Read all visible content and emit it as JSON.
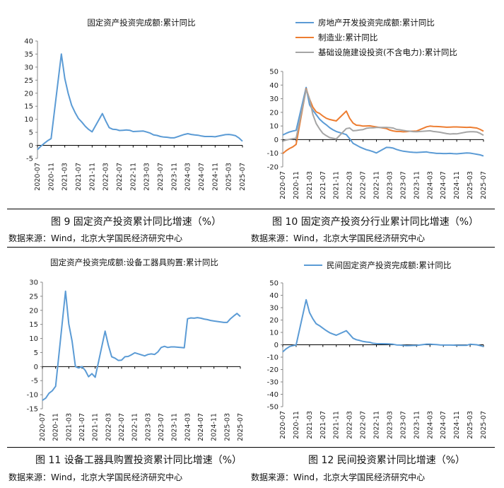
{
  "chart_data": [
    {
      "type": "line",
      "title": "固定资产投资完成额:累计同比",
      "ylim": [
        -5,
        40
      ],
      "yticks": [
        -5,
        0,
        5,
        10,
        15,
        20,
        25,
        30,
        35,
        40
      ],
      "x_tick_labels": [
        "2020-07",
        "2020-11",
        "2021-03",
        "2021-07",
        "2021-11",
        "2022-03",
        "2022-07",
        "2022-11",
        "2023-03",
        "2023-07",
        "2023-11",
        "2024-03",
        "2024-07",
        "2024-11",
        "2025-03",
        "2025-07"
      ],
      "legend": "none",
      "series": [
        {
          "color": "#5b9bd5",
          "x": [
            "2020-07",
            "2020-08",
            "2020-09",
            "2020-10",
            "2020-11",
            "2021-02",
            "2021-03",
            "2021-04",
            "2021-05",
            "2021-06",
            "2021-07",
            "2021-08",
            "2021-09",
            "2021-10",
            "2021-11",
            "2022-02",
            "2022-03",
            "2022-04",
            "2022-05",
            "2022-06",
            "2022-07",
            "2022-08",
            "2022-09",
            "2022-10",
            "2022-11",
            "2023-02",
            "2023-03",
            "2023-04",
            "2023-05",
            "2023-06",
            "2023-07",
            "2023-08",
            "2023-09",
            "2023-10",
            "2023-11",
            "2024-02",
            "2024-03",
            "2024-04",
            "2024-05",
            "2024-06",
            "2024-07",
            "2024-08",
            "2024-09",
            "2024-10",
            "2024-11",
            "2025-02",
            "2025-03",
            "2025-04",
            "2025-05",
            "2025-06",
            "2025-07"
          ],
          "values": [
            -1.6,
            -0.3,
            0.8,
            1.8,
            2.6,
            35.0,
            25.6,
            19.9,
            15.4,
            12.6,
            10.3,
            8.9,
            7.3,
            6.1,
            5.2,
            12.2,
            9.3,
            6.8,
            6.2,
            6.1,
            5.7,
            5.8,
            5.9,
            5.8,
            5.3,
            5.5,
            5.1,
            4.7,
            4.0,
            3.8,
            3.4,
            3.2,
            3.1,
            2.9,
            2.9,
            4.2,
            4.5,
            4.2,
            4.0,
            3.9,
            3.6,
            3.4,
            3.4,
            3.4,
            3.3,
            4.1,
            4.2,
            4.0,
            3.7,
            2.8,
            1.6
          ]
        }
      ]
    },
    {
      "type": "line",
      "ylim": [
        -20,
        50
      ],
      "yticks": [
        -20,
        -10,
        0,
        10,
        20,
        30,
        40,
        50
      ],
      "x_tick_labels": [
        "2020-07",
        "2020-11",
        "2021-03",
        "2021-07",
        "2021-11",
        "2022-03",
        "2022-07",
        "2022-11",
        "2023-03",
        "2023-07",
        "2023-11",
        "2024-03",
        "2024-07",
        "2024-11",
        "2025-03",
        "2025-07"
      ],
      "legend": "top-right",
      "series": [
        {
          "name": "房地产开发投资完成额:累计同比",
          "color": "#5b9bd5",
          "x": [
            "2020-07",
            "2020-08",
            "2020-09",
            "2020-10",
            "2020-11",
            "2021-02",
            "2021-03",
            "2021-04",
            "2021-05",
            "2021-06",
            "2021-07",
            "2021-08",
            "2021-09",
            "2021-10",
            "2021-11",
            "2022-02",
            "2022-03",
            "2022-04",
            "2022-05",
            "2022-06",
            "2022-07",
            "2022-08",
            "2022-09",
            "2022-10",
            "2022-11",
            "2023-02",
            "2023-03",
            "2023-04",
            "2023-05",
            "2023-06",
            "2023-07",
            "2023-08",
            "2023-09",
            "2023-10",
            "2023-11",
            "2024-02",
            "2024-03",
            "2024-04",
            "2024-05",
            "2024-06",
            "2024-07",
            "2024-08",
            "2024-09",
            "2024-10",
            "2024-11",
            "2025-02",
            "2025-03",
            "2025-04",
            "2025-05",
            "2025-06",
            "2025-07"
          ],
          "values": [
            3.4,
            4.6,
            5.6,
            6.3,
            6.8,
            38.3,
            25.6,
            21.6,
            18.3,
            15.0,
            12.7,
            10.9,
            8.8,
            7.2,
            6.0,
            3.7,
            0.7,
            -2.7,
            -4.0,
            -5.4,
            -6.4,
            -7.4,
            -8.0,
            -8.8,
            -9.8,
            -5.7,
            -5.8,
            -6.2,
            -7.2,
            -7.9,
            -8.5,
            -8.8,
            -9.1,
            -9.3,
            -9.4,
            -9.0,
            -9.5,
            -9.8,
            -10.1,
            -10.1,
            -10.2,
            -10.2,
            -10.1,
            -10.3,
            -10.4,
            -9.8,
            -9.9,
            -10.3,
            -10.7,
            -11.2,
            -12.0
          ]
        },
        {
          "name": "制造业:累计同比",
          "color": "#ed7d31",
          "x": [
            "2020-07",
            "2020-08",
            "2020-09",
            "2020-10",
            "2020-11",
            "2021-02",
            "2021-03",
            "2021-04",
            "2021-05",
            "2021-06",
            "2021-07",
            "2021-08",
            "2021-09",
            "2021-10",
            "2021-11",
            "2022-02",
            "2022-03",
            "2022-04",
            "2022-05",
            "2022-06",
            "2022-07",
            "2022-08",
            "2022-09",
            "2022-10",
            "2022-11",
            "2023-02",
            "2023-03",
            "2023-04",
            "2023-05",
            "2023-06",
            "2023-07",
            "2023-08",
            "2023-09",
            "2023-10",
            "2023-11",
            "2024-02",
            "2024-03",
            "2024-04",
            "2024-05",
            "2024-06",
            "2024-07",
            "2024-08",
            "2024-09",
            "2024-10",
            "2024-11",
            "2025-02",
            "2025-03",
            "2025-04",
            "2025-05",
            "2025-06",
            "2025-07"
          ],
          "values": [
            -10.2,
            -8.1,
            -6.5,
            -5.3,
            -3.5,
            37.3,
            29.8,
            23.8,
            20.4,
            19.2,
            17.3,
            15.7,
            14.8,
            14.2,
            13.7,
            20.9,
            15.6,
            12.2,
            10.6,
            10.4,
            9.9,
            10.0,
            10.1,
            9.7,
            9.3,
            8.1,
            7.0,
            6.4,
            6.0,
            6.0,
            5.7,
            5.9,
            6.2,
            6.2,
            6.3,
            9.4,
            9.9,
            9.7,
            9.6,
            9.5,
            9.3,
            9.1,
            9.2,
            9.3,
            9.3,
            9.0,
            9.1,
            8.8,
            8.5,
            7.5,
            6.2
          ]
        },
        {
          "name": "基础设施建设投资(不含电力):累计同比",
          "color": "#a5a5a5",
          "x": [
            "2020-07",
            "2020-08",
            "2020-09",
            "2020-10",
            "2020-11",
            "2021-02",
            "2021-03",
            "2021-04",
            "2021-05",
            "2021-06",
            "2021-07",
            "2021-08",
            "2021-09",
            "2021-10",
            "2021-11",
            "2022-02",
            "2022-03",
            "2022-04",
            "2022-05",
            "2022-06",
            "2022-07",
            "2022-08",
            "2022-09",
            "2022-10",
            "2022-11",
            "2023-02",
            "2023-03",
            "2023-04",
            "2023-05",
            "2023-06",
            "2023-07",
            "2023-08",
            "2023-09",
            "2023-10",
            "2023-11",
            "2024-02",
            "2024-03",
            "2024-04",
            "2024-05",
            "2024-06",
            "2024-07",
            "2024-08",
            "2024-09",
            "2024-10",
            "2024-11",
            "2025-02",
            "2025-03",
            "2025-04",
            "2025-05",
            "2025-06",
            "2025-07"
          ],
          "values": [
            -1.0,
            -0.3,
            0.2,
            0.7,
            1.0,
            36.6,
            29.7,
            18.4,
            11.8,
            7.8,
            4.6,
            2.9,
            1.5,
            1.0,
            0.5,
            8.1,
            8.5,
            6.5,
            6.7,
            7.1,
            7.4,
            8.3,
            8.6,
            8.7,
            8.9,
            9.0,
            8.8,
            8.5,
            7.5,
            7.2,
            6.8,
            6.4,
            6.2,
            5.9,
            5.8,
            6.3,
            6.5,
            6.0,
            5.7,
            5.4,
            4.9,
            4.4,
            4.1,
            4.3,
            4.2,
            5.6,
            5.8,
            5.8,
            5.6,
            4.6,
            3.2
          ]
        }
      ]
    },
    {
      "type": "line",
      "title": "固定资产投资完成额:设备工器具购置:累计同比",
      "ylim": [
        -15,
        30
      ],
      "yticks": [
        -15,
        -10,
        -5,
        0,
        5,
        10,
        15,
        20,
        25,
        30
      ],
      "x_tick_labels": [
        "2020-07",
        "2020-11",
        "2021-03",
        "2021-07",
        "2021-11",
        "2022-03",
        "2022-07",
        "2022-11",
        "2023-03",
        "2023-07",
        "2023-11",
        "2024-03",
        "2024-07",
        "2024-11",
        "2025-03",
        "2025-07"
      ],
      "legend": "none",
      "series": [
        {
          "color": "#5b9bd5",
          "x": [
            "2020-07",
            "2020-08",
            "2020-09",
            "2020-10",
            "2020-11",
            "2021-02",
            "2021-03",
            "2021-04",
            "2021-05",
            "2021-06",
            "2021-07",
            "2021-08",
            "2021-09",
            "2021-10",
            "2021-11",
            "2022-02",
            "2022-03",
            "2022-04",
            "2022-05",
            "2022-06",
            "2022-07",
            "2022-08",
            "2022-09",
            "2022-10",
            "2022-11",
            "2023-02",
            "2023-03",
            "2023-04",
            "2023-05",
            "2023-06",
            "2023-07",
            "2023-08",
            "2023-09",
            "2023-10",
            "2023-11",
            "2024-02",
            "2024-03",
            "2024-04",
            "2024-05",
            "2024-06",
            "2024-07",
            "2024-08",
            "2024-09",
            "2024-10",
            "2024-11",
            "2025-02",
            "2025-03",
            "2025-04",
            "2025-05",
            "2025-06",
            "2025-07"
          ],
          "values": [
            -12.0,
            -11.2,
            -9.5,
            -8.6,
            -7.0,
            26.8,
            15.2,
            9.0,
            0.0,
            -0.5,
            0.0,
            -1.4,
            -3.6,
            -2.5,
            -3.8,
            12.6,
            7.6,
            3.5,
            3.0,
            2.2,
            2.3,
            3.5,
            3.6,
            4.2,
            4.9,
            3.8,
            4.3,
            4.5,
            4.3,
            5.2,
            6.8,
            7.2,
            6.8,
            7.0,
            7.0,
            6.7,
            17.0,
            17.3,
            17.2,
            17.4,
            17.2,
            16.9,
            16.7,
            16.4,
            16.2,
            15.7,
            15.7,
            17.0,
            18.0,
            18.9,
            17.8
          ]
        }
      ]
    },
    {
      "type": "line",
      "ylim": [
        -50,
        50
      ],
      "yticks": [
        -50,
        -40,
        -30,
        -20,
        -10,
        0,
        10,
        20,
        30,
        40,
        50
      ],
      "x_tick_labels": [
        "2020-07",
        "2020-11",
        "2021-03",
        "2021-07",
        "2021-11",
        "2022-03",
        "2022-07",
        "2022-11",
        "2023-03",
        "2023-07",
        "2023-11",
        "2024-03",
        "2024-07",
        "2024-11",
        "2025-03",
        "2025-07"
      ],
      "legend": "top",
      "series": [
        {
          "name": "民间固定资产投资完成额:累计同比",
          "color": "#5b9bd5",
          "x": [
            "2020-07",
            "2020-08",
            "2020-09",
            "2020-10",
            "2020-11",
            "2021-02",
            "2021-03",
            "2021-04",
            "2021-05",
            "2021-06",
            "2021-07",
            "2021-08",
            "2021-09",
            "2021-10",
            "2021-11",
            "2022-02",
            "2022-03",
            "2022-04",
            "2022-05",
            "2022-06",
            "2022-07",
            "2022-08",
            "2022-09",
            "2022-10",
            "2022-11",
            "2023-02",
            "2023-03",
            "2023-04",
            "2023-05",
            "2023-06",
            "2023-07",
            "2023-08",
            "2023-09",
            "2023-10",
            "2023-11",
            "2024-02",
            "2024-03",
            "2024-04",
            "2024-05",
            "2024-06",
            "2024-07",
            "2024-08",
            "2024-09",
            "2024-10",
            "2024-11",
            "2025-02",
            "2025-03",
            "2025-04",
            "2025-05",
            "2025-06",
            "2025-07"
          ],
          "values": [
            -5.7,
            -3.3,
            -1.5,
            -0.7,
            -0.2,
            36.4,
            26.0,
            21.0,
            17.0,
            15.4,
            13.4,
            11.5,
            9.8,
            8.7,
            7.7,
            11.4,
            8.4,
            5.3,
            4.1,
            3.5,
            2.7,
            2.3,
            2.0,
            1.2,
            0.9,
            0.8,
            0.6,
            0.4,
            -0.1,
            -0.2,
            -0.5,
            -0.7,
            -0.6,
            -0.5,
            -0.5,
            0.5,
            0.5,
            0.3,
            0.1,
            -0.1,
            -0.2,
            -0.2,
            -0.2,
            -0.3,
            -0.4,
            -0.4,
            0.4,
            0.2,
            0.0,
            -0.6,
            -1.5
          ]
        }
      ]
    }
  ],
  "captions": {
    "fig9": "图 9  固定资产投资累计同比增速（%）",
    "fig10": "图 10 固定资产投资分行业累计同比增速（%）",
    "fig11": "图 11 设备工器具购置投资累计同比增速（%）",
    "fig12": "图 12 民间投资累计同比增速（%）"
  },
  "sources": {
    "s1": "数据来源：Wind，北京大学国民经济研究中心",
    "s2": "数据来源：Wind，北京大学国民经济研究中心",
    "s3": "数据来源：Wind，北京大学国民经济研究中心",
    "s4": "数据来源：Wind，北京大学国民经济研究中心"
  }
}
